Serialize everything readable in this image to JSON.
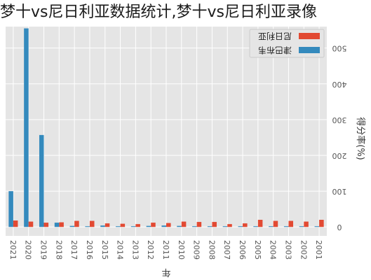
{
  "page_title": "梦十vs尼日利亚数据统计,梦十vs尼日利亚录像",
  "chart_data": {
    "type": "bar",
    "orientation": "rotated-180",
    "xlabel": "年",
    "ylabel": "得分率(%)",
    "ylim": [
      -25,
      560
    ],
    "yticks": [
      0,
      100,
      200,
      300,
      400,
      500
    ],
    "grid": true,
    "legend_position": "top-right",
    "categories": [
      "2021",
      "2020",
      "2019",
      "2018",
      "2017",
      "2016",
      "2015",
      "2014",
      "2013",
      "2012",
      "2011",
      "2010",
      "2009",
      "2008",
      "2007",
      "2006",
      "2005",
      "2004",
      "2003",
      "2002",
      "2001"
    ],
    "series": [
      {
        "name": "尼日利亚",
        "color": "#e24a33",
        "values": [
          18,
          15,
          12,
          13,
          17,
          17,
          10,
          9,
          8,
          12,
          11,
          15,
          14,
          14,
          8,
          10,
          20,
          17,
          17,
          15,
          20
        ]
      },
      {
        "name": "津巴布韦",
        "color": "#348abd",
        "values": [
          100,
          555,
          257,
          12,
          3,
          2,
          4,
          2,
          2,
          3,
          4,
          3,
          2,
          2,
          2,
          2,
          2,
          2,
          2,
          2,
          2
        ]
      }
    ]
  }
}
